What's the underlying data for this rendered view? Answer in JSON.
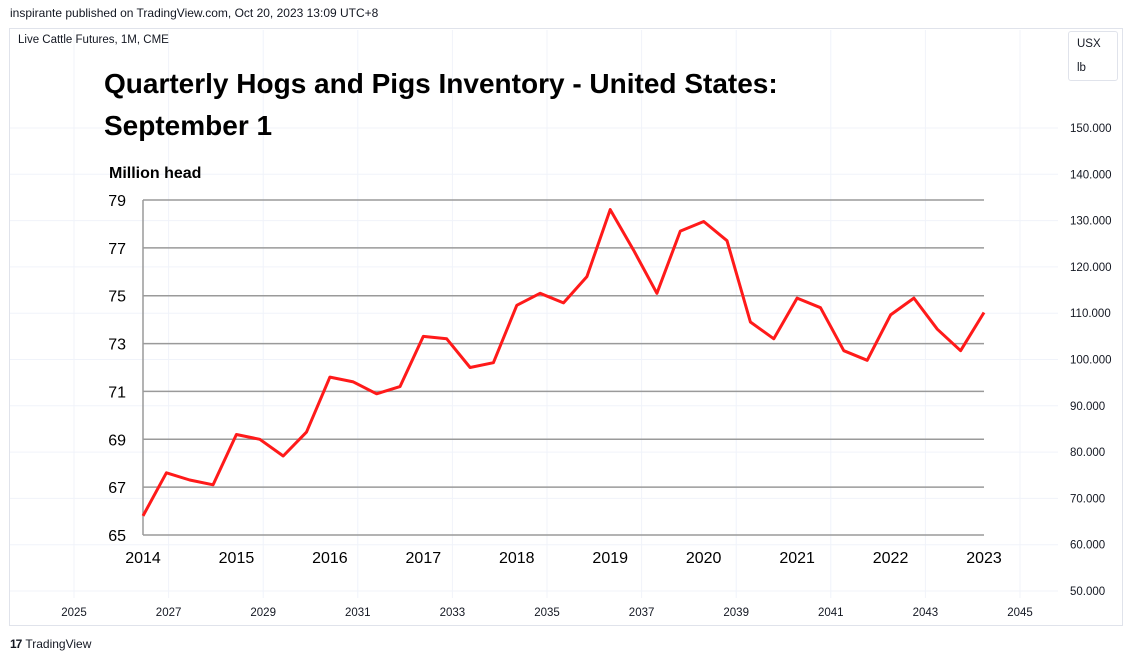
{
  "header": {
    "published_text": "inspirante published on TradingView.com, Oct 20, 2023 13:09 UTC+8"
  },
  "symbol": {
    "label": "Live Cattle Futures, 1M, CME"
  },
  "units": {
    "currency": "USX",
    "unit": "lb"
  },
  "footer": {
    "brand": "TradingView",
    "logo_glyph": "17"
  },
  "colors": {
    "line": "#ff1a1a",
    "grid": "#9a9a9a",
    "tv_grid": "#f0f3fa",
    "axis_text": "#131722"
  },
  "chart_data": {
    "type": "line",
    "title_line1": "Quarterly Hogs and Pigs Inventory - United States:",
    "title_line2": "September 1",
    "ylabel": "Million head",
    "ylim": [
      65,
      79
    ],
    "yticks": [
      65,
      67,
      69,
      71,
      73,
      75,
      77,
      79
    ],
    "xticks": [
      "2014",
      "2015",
      "2016",
      "2017",
      "2018",
      "2019",
      "2020",
      "2021",
      "2022",
      "2023"
    ],
    "series": [
      {
        "values": [
          65.8,
          67.6,
          67.3,
          67.1,
          69.2,
          69.0,
          68.3,
          69.3,
          71.6,
          71.4,
          70.9,
          71.2,
          73.3,
          73.2,
          72.0,
          72.2,
          74.6,
          75.1,
          74.7,
          75.8,
          78.6,
          76.9,
          75.1,
          77.7,
          78.1,
          77.3,
          73.9,
          73.2,
          74.9,
          74.5,
          72.7,
          72.3,
          74.2,
          74.9,
          73.6,
          72.7,
          74.3
        ]
      }
    ],
    "tv_price_axis": [
      "150.000",
      "140.000",
      "130.000",
      "120.000",
      "110.000",
      "100.000",
      "90.000",
      "80.000",
      "70.000",
      "60.000",
      "50.000"
    ],
    "tv_time_axis": [
      "2025",
      "2027",
      "2029",
      "2031",
      "2033",
      "2035",
      "2037",
      "2039",
      "2041",
      "2043",
      "2045"
    ]
  }
}
